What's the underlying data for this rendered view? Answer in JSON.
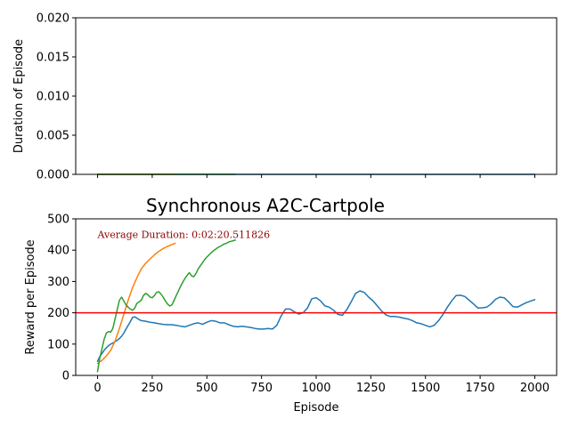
{
  "chart_data": [
    {
      "type": "line",
      "title": "",
      "xlabel": "",
      "ylabel": "Duration of Episode",
      "xlim": [
        -100,
        2100
      ],
      "ylim": [
        0.0,
        0.02
      ],
      "xticks": [
        0,
        250,
        500,
        750,
        1000,
        1250,
        1500,
        1750,
        2000
      ],
      "xtick_labels_visible": false,
      "yticks": [
        0.0,
        0.005,
        0.01,
        0.015,
        0.02
      ],
      "ytick_labels": [
        "0.000",
        "0.005",
        "0.010",
        "0.015",
        "0.020"
      ],
      "grid": false,
      "series": [
        {
          "color": "#1f77b4",
          "x": [
            0,
            2000
          ],
          "y": [
            0.0,
            0.0
          ]
        },
        {
          "color": "#ff7f0e",
          "x": [
            0,
            355
          ],
          "y": [
            0.0,
            0.0
          ]
        },
        {
          "color": "#2ca02c",
          "x": [
            0,
            630
          ],
          "y": [
            0.0,
            0.0
          ]
        }
      ]
    },
    {
      "type": "line",
      "title": "Synchronous A2C-Cartpole",
      "xlabel": "Episode",
      "ylabel": "Reward per Episode",
      "xlim": [
        -100,
        2100
      ],
      "ylim": [
        0,
        500
      ],
      "xticks": [
        0,
        250,
        500,
        750,
        1000,
        1250,
        1500,
        1750,
        2000
      ],
      "xtick_labels": [
        "0",
        "250",
        "500",
        "750",
        "1000",
        "1250",
        "1500",
        "1750",
        "2000"
      ],
      "yticks": [
        0,
        100,
        200,
        300,
        400,
        500
      ],
      "ytick_labels": [
        "0",
        "100",
        "200",
        "300",
        "400",
        "500"
      ],
      "grid": false,
      "annotation": {
        "text": "Average Duration: 0:02:20.511826",
        "x": 0,
        "y": 450,
        "color": "#8b0000"
      },
      "hline": {
        "y": 200,
        "color": "#ff0000"
      },
      "series": [
        {
          "color": "#1f77b4",
          "x": [
            0,
            10,
            20,
            30,
            40,
            50,
            60,
            70,
            80,
            90,
            100,
            110,
            120,
            130,
            140,
            150,
            160,
            170,
            180,
            190,
            200,
            220,
            240,
            260,
            280,
            300,
            320,
            340,
            360,
            380,
            400,
            420,
            440,
            460,
            480,
            500,
            520,
            540,
            560,
            580,
            600,
            620,
            640,
            660,
            680,
            700,
            720,
            740,
            760,
            780,
            800,
            820,
            840,
            860,
            880,
            900,
            920,
            940,
            960,
            980,
            1000,
            1020,
            1040,
            1060,
            1080,
            1100,
            1120,
            1140,
            1160,
            1180,
            1200,
            1220,
            1240,
            1260,
            1280,
            1300,
            1320,
            1340,
            1360,
            1380,
            1400,
            1420,
            1440,
            1460,
            1480,
            1500,
            1520,
            1540,
            1560,
            1580,
            1600,
            1620,
            1640,
            1660,
            1680,
            1700,
            1720,
            1740,
            1760,
            1780,
            1800,
            1820,
            1840,
            1860,
            1880,
            1900,
            1920,
            1940,
            1960,
            1980,
            2000
          ],
          "y": [
            45,
            60,
            70,
            80,
            88,
            95,
            100,
            103,
            108,
            112,
            118,
            125,
            135,
            148,
            160,
            172,
            185,
            187,
            183,
            178,
            175,
            173,
            170,
            168,
            165,
            163,
            162,
            162,
            160,
            157,
            155,
            160,
            165,
            168,
            163,
            170,
            175,
            173,
            168,
            168,
            162,
            157,
            155,
            157,
            155,
            153,
            150,
            148,
            148,
            150,
            148,
            160,
            190,
            212,
            212,
            203,
            196,
            200,
            215,
            245,
            248,
            238,
            222,
            218,
            208,
            195,
            192,
            210,
            235,
            262,
            270,
            265,
            250,
            238,
            222,
            205,
            193,
            188,
            188,
            186,
            183,
            180,
            175,
            168,
            165,
            160,
            155,
            160,
            175,
            195,
            218,
            238,
            255,
            256,
            252,
            240,
            228,
            215,
            216,
            218,
            228,
            243,
            250,
            248,
            235,
            220,
            218,
            225,
            232,
            237,
            242
          ]
        },
        {
          "color": "#ff7f0e",
          "x": [
            0,
            20,
            40,
            60,
            80,
            100,
            120,
            140,
            160,
            180,
            200,
            220,
            240,
            260,
            280,
            300,
            320,
            340,
            355
          ],
          "y": [
            38,
            48,
            62,
            80,
            110,
            150,
            195,
            240,
            280,
            312,
            340,
            358,
            372,
            385,
            396,
            405,
            412,
            418,
            422
          ]
        },
        {
          "color": "#2ca02c",
          "x": [
            0,
            10,
            20,
            30,
            40,
            50,
            60,
            70,
            80,
            90,
            100,
            110,
            120,
            130,
            140,
            150,
            160,
            170,
            180,
            190,
            200,
            210,
            220,
            230,
            240,
            250,
            260,
            270,
            280,
            290,
            300,
            310,
            320,
            330,
            340,
            350,
            360,
            370,
            380,
            390,
            400,
            410,
            420,
            430,
            440,
            450,
            460,
            470,
            480,
            490,
            500,
            510,
            520,
            530,
            540,
            550,
            560,
            570,
            580,
            590,
            600,
            610,
            620,
            630
          ],
          "y": [
            12,
            55,
            85,
            115,
            135,
            140,
            138,
            150,
            180,
            210,
            240,
            250,
            238,
            225,
            218,
            212,
            208,
            215,
            230,
            235,
            240,
            255,
            262,
            258,
            250,
            248,
            255,
            265,
            267,
            260,
            250,
            238,
            228,
            222,
            225,
            240,
            255,
            270,
            285,
            298,
            310,
            320,
            328,
            318,
            315,
            325,
            340,
            350,
            360,
            370,
            378,
            385,
            392,
            398,
            403,
            408,
            412,
            416,
            420,
            422,
            426,
            428,
            430,
            432
          ]
        }
      ]
    }
  ]
}
